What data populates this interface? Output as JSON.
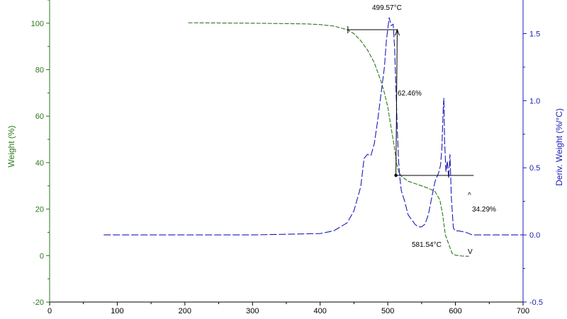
{
  "chart_data": {
    "type": "line",
    "x_ticks": [
      0,
      100,
      200,
      300,
      400,
      500,
      600,
      700
    ],
    "xlim": [
      0,
      700
    ],
    "y_left": {
      "label": "Weight (%)",
      "ticks": [
        -20,
        0,
        20,
        40,
        60,
        80,
        100
      ],
      "lim": [
        -20,
        110
      ],
      "color": "#2a7a1a"
    },
    "y_right": {
      "label": "Deriv. Weight (%/°C)",
      "ticks": [
        -0.5,
        0.0,
        0.5,
        1.0,
        1.5
      ],
      "ticks_text": [
        "-0.5",
        "0.0",
        "0.5",
        "1.0",
        "1.5"
      ],
      "lim": [
        -0.5,
        1.75
      ],
      "color": "#1a1ab8"
    },
    "series": [
      {
        "axis": "left",
        "color": "#2a7a1a",
        "points": [
          [
            205,
            100.2
          ],
          [
            300,
            100.0
          ],
          [
            380,
            99.7
          ],
          [
            400,
            99.4
          ],
          [
            420,
            98.8
          ],
          [
            440,
            97.2
          ],
          [
            450,
            95.5
          ],
          [
            460,
            92.5
          ],
          [
            470,
            88.5
          ],
          [
            480,
            83.0
          ],
          [
            490,
            75.0
          ],
          [
            495,
            70.0
          ],
          [
            500,
            64.0
          ],
          [
            505,
            55.0
          ],
          [
            510,
            46.0
          ],
          [
            513,
            40.0
          ],
          [
            516,
            36.0
          ],
          [
            520,
            34.2
          ],
          [
            530,
            32.0
          ],
          [
            545,
            30.5
          ],
          [
            560,
            29.0
          ],
          [
            570,
            27.5
          ],
          [
            577,
            24.0
          ],
          [
            581,
            18.0
          ],
          [
            585,
            9.0
          ],
          [
            590,
            5.0
          ],
          [
            595,
            1.0
          ],
          [
            600,
            0.2
          ],
          [
            610,
            -0.2
          ],
          [
            620,
            -0.3
          ]
        ]
      },
      {
        "axis": "right",
        "color": "#1a1ab8",
        "points": [
          [
            80,
            0.0
          ],
          [
            150,
            0.0
          ],
          [
            300,
            0.0
          ],
          [
            400,
            0.01
          ],
          [
            420,
            0.03
          ],
          [
            440,
            0.09
          ],
          [
            450,
            0.18
          ],
          [
            460,
            0.36
          ],
          [
            465,
            0.57
          ],
          [
            470,
            0.6
          ],
          [
            475,
            0.59
          ],
          [
            480,
            0.68
          ],
          [
            485,
            0.85
          ],
          [
            490,
            1.05
          ],
          [
            495,
            1.25
          ],
          [
            498,
            1.45
          ],
          [
            502,
            1.62
          ],
          [
            505,
            1.56
          ],
          [
            508,
            1.57
          ],
          [
            510,
            1.4
          ],
          [
            512,
            1.1
          ],
          [
            514,
            0.8
          ],
          [
            516,
            0.55
          ],
          [
            518,
            0.42
          ],
          [
            520,
            0.33
          ],
          [
            525,
            0.25
          ],
          [
            530,
            0.15
          ],
          [
            540,
            0.08
          ],
          [
            545,
            0.06
          ],
          [
            550,
            0.06
          ],
          [
            555,
            0.08
          ],
          [
            560,
            0.15
          ],
          [
            565,
            0.28
          ],
          [
            570,
            0.4
          ],
          [
            575,
            0.46
          ],
          [
            578,
            0.52
          ],
          [
            580,
            0.65
          ],
          [
            582,
            0.95
          ],
          [
            583,
            1.02
          ],
          [
            584,
            0.7
          ],
          [
            586,
            0.47
          ],
          [
            588,
            0.55
          ],
          [
            590,
            0.42
          ],
          [
            592,
            0.6
          ],
          [
            594,
            0.28
          ],
          [
            597,
            0.05
          ],
          [
            600,
            0.03
          ],
          [
            605,
            0.03
          ],
          [
            615,
            0.02
          ],
          [
            625,
            0.0
          ],
          [
            700,
            0.0
          ]
        ]
      }
    ],
    "annotations": {
      "onset_temp": "499.57°C",
      "weight_loss": "62.46%",
      "residue": "34.29%",
      "end_temp": "581.54°C",
      "end_marker": "V",
      "onset_marker": "^"
    }
  }
}
